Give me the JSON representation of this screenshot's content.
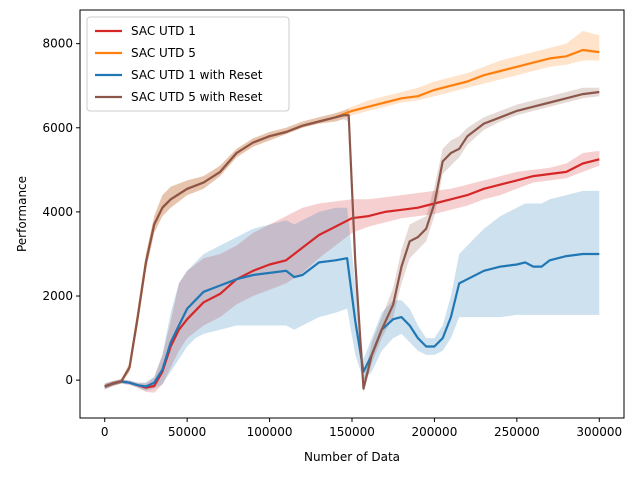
{
  "chart_data": {
    "type": "line",
    "title": "",
    "xlabel": "Number of Data",
    "ylabel": "Performance",
    "xlim": [
      -15000,
      315000
    ],
    "ylim": [
      -900,
      8800
    ],
    "xticks": [
      0,
      50000,
      100000,
      150000,
      200000,
      250000,
      300000
    ],
    "yticks": [
      0,
      2000,
      4000,
      6000,
      8000
    ],
    "grid": false,
    "legend_position": "upper-left",
    "series": [
      {
        "name": "SAC UTD 1",
        "color": "#d62728",
        "x": [
          0,
          5000,
          10000,
          15000,
          20000,
          25000,
          30000,
          35000,
          40000,
          45000,
          50000,
          60000,
          70000,
          80000,
          90000,
          100000,
          110000,
          120000,
          130000,
          140000,
          150000,
          160000,
          170000,
          180000,
          190000,
          200000,
          210000,
          220000,
          230000,
          240000,
          250000,
          260000,
          270000,
          280000,
          290000,
          300000
        ],
        "y": [
          -150,
          -80,
          -30,
          -60,
          -120,
          -180,
          -140,
          200,
          800,
          1200,
          1450,
          1850,
          2050,
          2400,
          2600,
          2750,
          2850,
          3150,
          3450,
          3650,
          3850,
          3900,
          4000,
          4050,
          4100,
          4200,
          4300,
          4400,
          4550,
          4650,
          4750,
          4850,
          4900,
          4950,
          5150,
          5250
        ],
        "lower": [
          -220,
          -140,
          -80,
          -110,
          -180,
          -280,
          -300,
          -100,
          300,
          700,
          1000,
          1300,
          1500,
          1800,
          2000,
          2150,
          2300,
          2550,
          2900,
          3200,
          3500,
          3650,
          3750,
          3850,
          3900,
          3950,
          4050,
          4150,
          4300,
          4400,
          4550,
          4700,
          4750,
          4800,
          4950,
          5100
        ],
        "upper": [
          -80,
          -20,
          20,
          -10,
          -60,
          -80,
          60,
          600,
          1400,
          2300,
          2600,
          2900,
          3000,
          3200,
          3500,
          3700,
          3900,
          4100,
          4200,
          4250,
          4300,
          4300,
          4350,
          4400,
          4450,
          4500,
          4550,
          4650,
          4750,
          4850,
          4950,
          5000,
          5050,
          5150,
          5400,
          5450
        ]
      },
      {
        "name": "SAC UTD 5",
        "color": "#ff7f0e",
        "x": [
          0,
          5000,
          10000,
          15000,
          20000,
          25000,
          30000,
          35000,
          40000,
          50000,
          60000,
          70000,
          80000,
          90000,
          100000,
          110000,
          120000,
          130000,
          140000,
          150000,
          160000,
          170000,
          180000,
          190000,
          200000,
          210000,
          220000,
          230000,
          240000,
          250000,
          260000,
          270000,
          280000,
          290000,
          300000
        ],
        "y": [
          -150,
          -80,
          -30,
          300,
          1500,
          2800,
          3700,
          4100,
          4300,
          4550,
          4700,
          4950,
          5400,
          5650,
          5800,
          5900,
          6050,
          6150,
          6250,
          6400,
          6500,
          6600,
          6700,
          6750,
          6900,
          7000,
          7100,
          7250,
          7350,
          7450,
          7550,
          7650,
          7700,
          7850,
          7800
        ],
        "lower": [
          -200,
          -130,
          -80,
          200,
          1300,
          2600,
          3500,
          3900,
          4100,
          4400,
          4550,
          4850,
          5300,
          5550,
          5700,
          5850,
          6000,
          6100,
          6150,
          6300,
          6400,
          6500,
          6600,
          6650,
          6750,
          6850,
          6950,
          7050,
          7150,
          7250,
          7350,
          7450,
          7500,
          7600,
          7600
        ],
        "upper": [
          -100,
          -30,
          20,
          400,
          1700,
          3000,
          3900,
          4400,
          4600,
          4750,
          4850,
          5100,
          5500,
          5750,
          5900,
          6000,
          6150,
          6250,
          6350,
          6500,
          6650,
          6750,
          6850,
          6950,
          7100,
          7200,
          7300,
          7450,
          7600,
          7700,
          7800,
          7900,
          8000,
          8300,
          8200
        ]
      },
      {
        "name": "SAC UTD 1 with Reset",
        "color": "#1f77b4",
        "x": [
          0,
          5000,
          10000,
          15000,
          20000,
          25000,
          30000,
          35000,
          40000,
          45000,
          50000,
          55000,
          60000,
          70000,
          80000,
          90000,
          100000,
          110000,
          115000,
          120000,
          130000,
          140000,
          147000,
          152000,
          157000,
          162000,
          168000,
          175000,
          180000,
          185000,
          190000,
          195000,
          200000,
          205000,
          210000,
          215000,
          220000,
          230000,
          240000,
          250000,
          255000,
          260000,
          265000,
          270000,
          280000,
          290000,
          300000
        ],
        "y": [
          -150,
          -80,
          -30,
          -60,
          -120,
          -150,
          -60,
          250,
          900,
          1300,
          1700,
          1900,
          2100,
          2250,
          2400,
          2500,
          2550,
          2600,
          2450,
          2500,
          2800,
          2850,
          2900,
          1400,
          200,
          600,
          1200,
          1450,
          1500,
          1300,
          1000,
          800,
          800,
          1000,
          1500,
          2300,
          2400,
          2600,
          2700,
          2750,
          2800,
          2700,
          2700,
          2850,
          2950,
          3000,
          3000
        ],
        "lower": [
          -220,
          -140,
          -80,
          -110,
          -180,
          -250,
          -200,
          -100,
          200,
          500,
          800,
          1000,
          1100,
          1200,
          1300,
          1300,
          1300,
          1300,
          1200,
          1300,
          1500,
          1600,
          1700,
          600,
          0,
          200,
          700,
          1000,
          1100,
          900,
          700,
          600,
          600,
          700,
          1000,
          1500,
          1500,
          1500,
          1500,
          1550,
          1550,
          1550,
          1550,
          1550,
          1550,
          1550,
          1550
        ],
        "upper": [
          -80,
          -20,
          20,
          -10,
          -60,
          -50,
          80,
          600,
          1600,
          2300,
          2600,
          2800,
          3000,
          3200,
          3400,
          3600,
          3700,
          3800,
          3700,
          3800,
          4000,
          4100,
          4100,
          2300,
          500,
          1000,
          1600,
          1900,
          1900,
          1700,
          1300,
          1000,
          1000,
          1300,
          2000,
          3000,
          3200,
          3600,
          3900,
          4100,
          4200,
          4200,
          4200,
          4300,
          4400,
          4500,
          4500
        ]
      },
      {
        "name": "SAC UTD 5 with Reset",
        "color": "#8c564b",
        "x": [
          0,
          5000,
          10000,
          15000,
          20000,
          25000,
          30000,
          35000,
          40000,
          50000,
          60000,
          70000,
          80000,
          90000,
          100000,
          110000,
          120000,
          130000,
          140000,
          145000,
          148000,
          152000,
          157000,
          162000,
          168000,
          175000,
          180000,
          185000,
          190000,
          195000,
          200000,
          205000,
          210000,
          215000,
          220000,
          230000,
          240000,
          250000,
          260000,
          270000,
          280000,
          290000,
          300000
        ],
        "y": [
          -150,
          -80,
          -30,
          300,
          1500,
          2800,
          3700,
          4100,
          4300,
          4550,
          4700,
          4950,
          5400,
          5650,
          5800,
          5900,
          6050,
          6150,
          6250,
          6300,
          6300,
          2800,
          -200,
          600,
          1200,
          1800,
          2700,
          3300,
          3400,
          3600,
          4200,
          5200,
          5400,
          5500,
          5800,
          6100,
          6250,
          6400,
          6500,
          6600,
          6700,
          6800,
          6850
        ],
        "lower": [
          -200,
          -130,
          -80,
          200,
          1300,
          2600,
          3500,
          3900,
          4100,
          4400,
          4550,
          4850,
          5300,
          5550,
          5700,
          5850,
          6000,
          6100,
          6150,
          6200,
          6150,
          2400,
          -300,
          400,
          1000,
          1500,
          2300,
          2900,
          3100,
          3300,
          3900,
          4900,
          5100,
          5300,
          5600,
          5950,
          6150,
          6300,
          6400,
          6500,
          6600,
          6700,
          6750
        ],
        "upper": [
          -100,
          -30,
          20,
          400,
          1700,
          3000,
          3900,
          4400,
          4600,
          4750,
          4850,
          5100,
          5500,
          5750,
          5900,
          6000,
          6150,
          6250,
          6350,
          6400,
          6450,
          3200,
          0,
          900,
          1500,
          2200,
          3100,
          3700,
          3800,
          3900,
          4600,
          5500,
          5700,
          5800,
          6000,
          6250,
          6400,
          6550,
          6650,
          6750,
          6850,
          6950,
          6950
        ]
      }
    ]
  }
}
